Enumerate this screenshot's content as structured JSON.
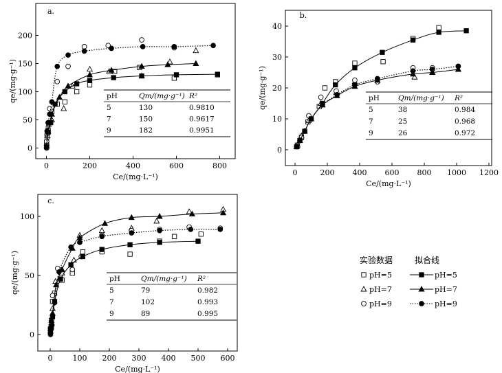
{
  "chart_data": [
    {
      "type": "scatter",
      "panel_label": "a.",
      "x_ticks": [
        "0",
        "200",
        "400",
        "600",
        "800"
      ],
      "y_ticks": [
        "0",
        "50",
        "100",
        "150",
        "200"
      ],
      "xlim": [
        -30,
        850
      ],
      "ylim": [
        -20,
        230
      ],
      "xlabel": "Ce/(mg·L⁻¹)",
      "ylabel": "qe/(mg·g⁻¹)",
      "fit": [
        {
          "ph": 5,
          "Qm": 130
        },
        {
          "ph": 7,
          "Qm": 150,
          "dashed": false
        },
        {
          "ph": 9,
          "Qm": 182,
          "dashed": true
        }
      ],
      "series": [
        {
          "name": "pH=5 实验数据",
          "marker": "square-open",
          "points": [
            [
              1,
              10
            ],
            [
              3,
              20
            ],
            [
              8,
              32
            ],
            [
              25,
              65
            ],
            [
              50,
              78
            ],
            [
              85,
              82
            ],
            [
              140,
              100
            ],
            [
              200,
              112
            ],
            [
              315,
              136
            ],
            [
              430,
              143
            ],
            [
              590,
              124
            ],
            [
              790,
              130
            ]
          ]
        },
        {
          "name": "pH=7 实验数据",
          "marker": "triangle-open",
          "points": [
            [
              1,
              8
            ],
            [
              5,
              22
            ],
            [
              10,
              42
            ],
            [
              25,
              50
            ],
            [
              80,
              70
            ],
            [
              120,
              110
            ],
            [
              200,
              140
            ],
            [
              290,
              136
            ],
            [
              440,
              128
            ],
            [
              570,
              153
            ],
            [
              690,
              173
            ]
          ]
        },
        {
          "name": "pH=9 实验数据",
          "marker": "circle-open",
          "points": [
            [
              1,
              12
            ],
            [
              3,
              25
            ],
            [
              8,
              45
            ],
            [
              15,
              70
            ],
            [
              50,
              118
            ],
            [
              100,
              145
            ],
            [
              175,
              180
            ],
            [
              285,
              182
            ],
            [
              440,
              192
            ],
            [
              590,
              178
            ]
          ]
        },
        {
          "name": "pH=5 拟合线",
          "marker": "square-filled",
          "line": "solid",
          "points": [
            [
              1,
              2
            ],
            [
              8,
              28
            ],
            [
              20,
              45
            ],
            [
              40,
              78
            ],
            [
              85,
              100
            ],
            [
              140,
              114
            ],
            [
              200,
              120
            ],
            [
              310,
              125
            ],
            [
              440,
              128
            ],
            [
              600,
              130
            ],
            [
              790,
              131
            ]
          ]
        },
        {
          "name": "pH=7 拟合线",
          "marker": "triangle-filled",
          "line": "solid",
          "points": [
            [
              1,
              4
            ],
            [
              8,
              30
            ],
            [
              25,
              60
            ],
            [
              60,
              90
            ],
            [
              100,
              110
            ],
            [
              200,
              130
            ],
            [
              300,
              138
            ],
            [
              440,
              145
            ],
            [
              560,
              148
            ],
            [
              690,
              150
            ]
          ]
        },
        {
          "name": "pH=9 拟合线",
          "marker": "circle-filled",
          "line": "dotted",
          "points": [
            [
              1,
              0
            ],
            [
              3,
              30
            ],
            [
              8,
              45
            ],
            [
              15,
              60
            ],
            [
              25,
              82
            ],
            [
              50,
              145
            ],
            [
              100,
              165
            ],
            [
              175,
              172
            ],
            [
              300,
              177
            ],
            [
              445,
              180
            ],
            [
              590,
              180
            ],
            [
              770,
              182
            ]
          ]
        }
      ],
      "table": {
        "headers": [
          "pH",
          "Qm/(mg·g⁻¹)",
          "R²"
        ],
        "rows": [
          [
            "5",
            "130",
            "0.9810"
          ],
          [
            "7",
            "150",
            "0.9617"
          ],
          [
            "9",
            "182",
            "0.9951"
          ]
        ]
      }
    },
    {
      "type": "scatter",
      "panel_label": "b.",
      "x_ticks": [
        "0",
        "200",
        "400",
        "600",
        "800",
        "1000",
        "1200"
      ],
      "y_ticks": [
        "0",
        "10",
        "20",
        "30",
        "40"
      ],
      "xlim": [
        -30,
        1220
      ],
      "ylim": [
        -2,
        43
      ],
      "xlabel": "Ce/(mg·L⁻¹)",
      "ylabel": "qe/(mg·g⁻¹)",
      "series": [
        {
          "name": "pH=5 实验数据",
          "marker": "square-open",
          "points": [
            [
              15,
              1.5
            ],
            [
              40,
              4
            ],
            [
              80,
              9
            ],
            [
              150,
              14
            ],
            [
              185,
              20
            ],
            [
              250,
              22
            ],
            [
              370,
              28
            ],
            [
              545,
              28.5
            ],
            [
              730,
              36
            ],
            [
              890,
              39.5
            ]
          ]
        },
        {
          "name": "pH=7 实验数据",
          "marker": "triangle-open",
          "points": [
            [
              15,
              1.5
            ],
            [
              40,
              4.5
            ],
            [
              85,
              9.5
            ],
            [
              160,
              15
            ],
            [
              255,
              18.5
            ],
            [
              370,
              22
            ],
            [
              510,
              22.5
            ],
            [
              740,
              23.5
            ],
            [
              850,
              25
            ],
            [
              1010,
              26
            ]
          ]
        },
        {
          "name": "pH=9 实验数据",
          "marker": "circle-open",
          "points": [
            [
              15,
              1
            ],
            [
              40,
              4
            ],
            [
              85,
              11
            ],
            [
              160,
              17
            ],
            [
              255,
              19
            ],
            [
              370,
              22.5
            ],
            [
              510,
              22
            ],
            [
              730,
              26.5
            ],
            [
              850,
              26.5
            ],
            [
              1010,
              27
            ]
          ]
        },
        {
          "name": "pH=5 拟合线",
          "marker": "square-filled",
          "line": "solid",
          "points": [
            [
              10,
              1
            ],
            [
              30,
              3
            ],
            [
              60,
              6
            ],
            [
              100,
              10
            ],
            [
              170,
              15
            ],
            [
              250,
              21
            ],
            [
              370,
              26.5
            ],
            [
              540,
              31.5
            ],
            [
              730,
              35.5
            ],
            [
              890,
              38
            ],
            [
              1060,
              38.5
            ]
          ]
        },
        {
          "name": "pH=7 拟合线",
          "marker": "triangle-filled",
          "line": "solid",
          "points": [
            [
              10,
              1
            ],
            [
              30,
              3
            ],
            [
              60,
              6
            ],
            [
              100,
              10
            ],
            [
              170,
              14.5
            ],
            [
              260,
              17.5
            ],
            [
              370,
              20.5
            ],
            [
              510,
              22.5
            ],
            [
              730,
              24.5
            ],
            [
              850,
              25
            ],
            [
              1010,
              26
            ]
          ]
        },
        {
          "name": "pH=9 拟合线",
          "marker": "circle-filled",
          "line": "dotted",
          "points": [
            [
              10,
              1
            ],
            [
              30,
              3
            ],
            [
              60,
              6
            ],
            [
              100,
              10
            ],
            [
              170,
              14.5
            ],
            [
              260,
              17.8
            ],
            [
              370,
              21
            ],
            [
              510,
              23
            ],
            [
              730,
              25.5
            ],
            [
              850,
              26
            ],
            [
              1010,
              27
            ]
          ]
        }
      ],
      "table": {
        "headers": [
          "pH",
          "Qm/(mg·g⁻¹)",
          "R²"
        ],
        "rows": [
          [
            "5",
            "38",
            "0.984"
          ],
          [
            "7",
            "25",
            "0.968"
          ],
          [
            "9",
            "26",
            "0.972"
          ]
        ]
      }
    },
    {
      "type": "scatter",
      "panel_label": "c.",
      "x_ticks": [
        "0",
        "100",
        "200",
        "300",
        "400",
        "500",
        "600"
      ],
      "y_ticks": [
        "0",
        "50",
        "100"
      ],
      "xlim": [
        -25,
        610
      ],
      "ylim": [
        -5,
        120
      ],
      "xlabel": "Ce/(mg·L⁻¹)",
      "ylabel": "qe/(mg·g⁻¹)",
      "series": [
        {
          "name": "pH=5 实验数据",
          "marker": "square-open",
          "points": [
            [
              1,
              5
            ],
            [
              4,
              12
            ],
            [
              8,
              28
            ],
            [
              15,
              35
            ],
            [
              40,
              46
            ],
            [
              75,
              52
            ],
            [
              110,
              70
            ],
            [
              175,
              70
            ],
            [
              270,
              68
            ],
            [
              370,
              79
            ],
            [
              420,
              83
            ],
            [
              510,
              85
            ]
          ]
        },
        {
          "name": "pH=7 实验数据",
          "marker": "triangle-open",
          "points": [
            [
              1,
              3
            ],
            [
              4,
              10
            ],
            [
              8,
              22
            ],
            [
              18,
              45
            ],
            [
              40,
              52
            ],
            [
              80,
              63
            ],
            [
              100,
              84
            ],
            [
              175,
              88
            ],
            [
              275,
              90
            ],
            [
              360,
              96
            ],
            [
              470,
              104
            ],
            [
              585,
              106
            ]
          ]
        },
        {
          "name": "pH=9 实验数据",
          "marker": "circle-open",
          "points": [
            [
              1,
              5
            ],
            [
              4,
              12
            ],
            [
              8,
              33
            ],
            [
              25,
              56
            ],
            [
              75,
              55
            ],
            [
              105,
              66
            ],
            [
              175,
              84
            ],
            [
              275,
              88
            ],
            [
              370,
              89
            ],
            [
              470,
              91
            ],
            [
              575,
              90
            ]
          ]
        },
        {
          "name": "pH=5 拟合线",
          "marker": "square-filled",
          "line": "solid",
          "points": [
            [
              1,
              2
            ],
            [
              4,
              6
            ],
            [
              8,
              15
            ],
            [
              15,
              28
            ],
            [
              35,
              47
            ],
            [
              70,
              59
            ],
            [
              110,
              66
            ],
            [
              175,
              72
            ],
            [
              270,
              76
            ],
            [
              370,
              78
            ],
            [
              500,
              79
            ]
          ]
        },
        {
          "name": "pH=7 拟合线",
          "marker": "triangle-filled",
          "line": "solid",
          "points": [
            [
              1,
              5
            ],
            [
              4,
              12
            ],
            [
              8,
              18
            ],
            [
              20,
              42
            ],
            [
              40,
              55
            ],
            [
              75,
              73
            ],
            [
              100,
              82
            ],
            [
              185,
              94
            ],
            [
              275,
              99
            ],
            [
              370,
              100
            ],
            [
              480,
              102
            ],
            [
              585,
              103
            ]
          ]
        },
        {
          "name": "pH=9 拟合线",
          "marker": "circle-filled",
          "line": "dotted",
          "points": [
            [
              1,
              0
            ],
            [
              3,
              5
            ],
            [
              6,
              8
            ],
            [
              15,
              27
            ],
            [
              30,
              53
            ],
            [
              70,
              74
            ],
            [
              100,
              78
            ],
            [
              175,
              83
            ],
            [
              275,
              86
            ],
            [
              370,
              88
            ],
            [
              475,
              89
            ],
            [
              575,
              89
            ]
          ]
        }
      ],
      "table": {
        "headers": [
          "pH",
          "Qm/(mg·g⁻¹)",
          "R²"
        ],
        "rows": [
          [
            "5",
            "79",
            "0.982"
          ],
          [
            "7",
            "102",
            "0.993"
          ],
          [
            "9",
            "89",
            "0.995"
          ]
        ]
      }
    }
  ],
  "legend": {
    "header_data": "实验数据",
    "header_fit": "拟合线",
    "items": [
      {
        "marker": "square-open",
        "label": "pH=5",
        "fit_marker": "square-filled",
        "fit_line": "solid",
        "fit_label": "pH=5"
      },
      {
        "marker": "triangle-open",
        "label": "pH=7",
        "fit_marker": "triangle-filled",
        "fit_line": "solid",
        "fit_label": "pH=7"
      },
      {
        "marker": "circle-open",
        "label": "pH=9",
        "fit_marker": "circle-filled",
        "fit_line": "dotted",
        "fit_label": "pH=9"
      }
    ]
  }
}
